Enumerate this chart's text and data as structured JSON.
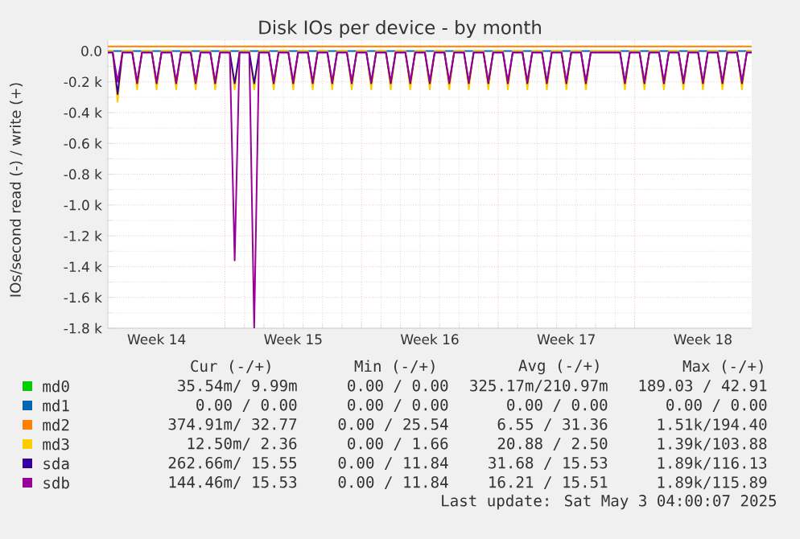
{
  "chart_data": {
    "type": "line",
    "title": "Disk IOs per device - by month",
    "ylabel": "IOs/second read (-) / write (+)",
    "categories": [
      null,
      null,
      null,
      null,
      null,
      null,
      null,
      null,
      null,
      null,
      "Week 14",
      null,
      null,
      null,
      null,
      null,
      null,
      null,
      null,
      null,
      null,
      null,
      null,
      null,
      null,
      null,
      null,
      null,
      null,
      null,
      null,
      null,
      null,
      null,
      null,
      null,
      null,
      null,
      "Week 15",
      null,
      null,
      null,
      null,
      null,
      null,
      null,
      null,
      null,
      null,
      null,
      null,
      null,
      null,
      null,
      null,
      null,
      null,
      null,
      null,
      null,
      null,
      null,
      null,
      null,
      null,
      null,
      "Week 16",
      null,
      null,
      null,
      null,
      null,
      null,
      null,
      null,
      null,
      null,
      null,
      null,
      null,
      null,
      null,
      null,
      null,
      null,
      null,
      null,
      null,
      null,
      null,
      null,
      null,
      null,
      null,
      "Week 17",
      null,
      null,
      null,
      null,
      null,
      null,
      null,
      null,
      null,
      null,
      null,
      null,
      null,
      null,
      null,
      null,
      null,
      null,
      null,
      null,
      null,
      null,
      null,
      null,
      null,
      null,
      null,
      "Week 18",
      null,
      null,
      null,
      null,
      null,
      null,
      null,
      null,
      null,
      null
    ],
    "series": [
      {
        "name": "md0",
        "color": "#00cc00",
        "values": [
          null,
          null,
          null,
          null,
          null,
          null,
          null,
          null,
          null,
          null,
          null,
          null,
          null,
          null,
          null,
          null,
          null,
          null,
          null,
          null,
          null,
          null,
          null,
          null,
          null,
          null,
          null,
          null,
          null,
          null,
          null,
          null,
          null,
          null,
          null,
          null,
          null,
          null,
          null,
          null,
          null,
          null,
          null,
          null,
          null,
          null,
          null,
          null,
          null,
          null,
          null,
          null,
          null,
          null,
          null,
          null,
          null,
          null,
          null,
          null,
          null,
          null,
          null,
          null,
          null,
          null,
          null,
          null,
          null,
          null,
          null,
          null,
          null,
          null,
          null,
          null,
          null,
          null,
          null,
          null,
          null,
          null,
          null,
          null,
          null,
          null,
          null,
          null,
          null,
          null,
          null,
          null,
          null,
          null,
          null,
          null,
          null,
          null,
          null,
          null,
          null,
          null,
          null,
          null,
          null,
          null,
          null,
          null,
          null,
          null,
          null,
          null,
          null,
          null,
          null,
          null,
          null,
          null,
          null,
          null,
          null,
          null,
          null,
          null,
          null,
          null,
          null,
          null,
          null,
          null,
          null,
          null,
          null
        ]
      },
      {
        "name": "md1",
        "color": "#0066b3",
        "values": [
          0,
          0,
          0,
          0,
          0,
          0,
          0,
          0,
          0,
          0,
          0,
          0,
          0,
          0,
          0,
          0,
          0,
          0,
          0,
          0,
          0,
          0,
          0,
          0,
          0,
          0,
          0,
          0,
          0,
          0,
          0,
          0,
          0,
          0,
          0,
          0,
          0,
          0,
          0,
          0,
          0,
          0,
          0,
          0,
          0,
          0,
          0,
          0,
          0,
          0,
          0,
          0,
          0,
          0,
          0,
          0,
          0,
          0,
          0,
          0,
          0,
          0,
          0,
          0,
          0,
          0,
          0,
          0,
          0,
          0,
          0,
          0,
          0,
          0,
          0,
          0,
          0,
          0,
          0,
          0,
          0,
          0,
          0,
          0,
          0,
          0,
          0,
          0,
          0,
          0,
          0,
          0,
          0,
          0,
          0,
          0,
          0,
          0,
          0,
          0,
          0,
          0,
          0,
          0,
          0,
          0,
          0,
          0,
          0,
          0,
          0,
          0,
          0,
          0,
          0,
          0,
          0,
          0,
          0,
          0,
          0,
          0,
          0,
          0,
          0,
          0,
          0,
          0,
          0,
          0,
          0,
          0,
          0
        ]
      },
      {
        "name": "md2",
        "color": "#ff8000",
        "values": [
          30,
          30,
          30,
          30,
          30,
          30,
          30,
          30,
          30,
          30,
          30,
          30,
          30,
          30,
          30,
          30,
          30,
          30,
          30,
          30,
          30,
          30,
          30,
          30,
          30,
          30,
          30,
          30,
          30,
          30,
          30,
          30,
          30,
          30,
          30,
          30,
          30,
          30,
          30,
          30,
          30,
          30,
          30,
          30,
          30,
          30,
          30,
          30,
          30,
          30,
          30,
          30,
          30,
          30,
          30,
          30,
          30,
          30,
          30,
          30,
          30,
          30,
          30,
          30,
          30,
          30,
          30,
          30,
          30,
          30,
          30,
          30,
          30,
          30,
          30,
          30,
          30,
          30,
          30,
          30,
          30,
          30,
          30,
          30,
          30,
          30,
          30,
          30,
          30,
          30,
          30,
          30,
          30,
          30,
          30,
          30,
          30,
          30,
          30,
          30,
          30,
          30,
          30,
          30,
          30,
          30,
          30,
          30,
          30,
          30,
          30,
          30,
          30,
          30,
          30,
          30,
          30,
          30,
          30,
          30,
          30,
          30,
          30,
          30,
          30,
          30,
          30,
          30,
          30,
          30,
          30,
          30,
          30
        ]
      },
      {
        "name": "md3",
        "color": "#ffcc00",
        "values": [
          0,
          0,
          -330,
          0,
          0,
          0,
          -250,
          0,
          0,
          0,
          -250,
          0,
          0,
          0,
          -250,
          0,
          0,
          0,
          -250,
          0,
          0,
          0,
          -250,
          0,
          0,
          0,
          -250,
          0,
          0,
          0,
          -250,
          0,
          0,
          0,
          -250,
          0,
          0,
          0,
          -250,
          0,
          0,
          0,
          -250,
          0,
          0,
          0,
          -250,
          0,
          0,
          0,
          -250,
          0,
          0,
          0,
          -250,
          0,
          0,
          0,
          -250,
          0,
          0,
          0,
          -250,
          0,
          0,
          0,
          -250,
          0,
          0,
          0,
          -250,
          0,
          0,
          0,
          -250,
          0,
          0,
          0,
          -250,
          0,
          0,
          0,
          -250,
          0,
          0,
          0,
          -250,
          0,
          0,
          0,
          -250,
          0,
          0,
          0,
          -250,
          0,
          0,
          0,
          -250,
          0,
          0,
          0,
          0,
          0,
          0,
          0,
          -250,
          0,
          0,
          0,
          -250,
          0,
          0,
          0,
          -250,
          0,
          0,
          0,
          -250,
          0,
          0,
          0,
          -250,
          0,
          0,
          0,
          -250,
          0,
          0,
          0,
          -250,
          0,
          0
        ]
      },
      {
        "name": "sda",
        "color": "#330099",
        "values": [
          -10,
          -10,
          -280,
          -10,
          -10,
          -10,
          -210,
          -10,
          -10,
          -10,
          -210,
          -10,
          -10,
          -10,
          -210,
          -10,
          -10,
          -10,
          -210,
          -10,
          -10,
          -10,
          -210,
          -10,
          -10,
          -10,
          -210,
          -10,
          -10,
          -10,
          -210,
          -10,
          -10,
          -10,
          -210,
          -10,
          -10,
          -10,
          -210,
          -10,
          -10,
          -10,
          -210,
          -10,
          -10,
          -10,
          -210,
          -10,
          -10,
          -10,
          -210,
          -10,
          -10,
          -10,
          -210,
          -10,
          -10,
          -10,
          -210,
          -10,
          -10,
          -10,
          -210,
          -10,
          -10,
          -10,
          -210,
          -10,
          -10,
          -10,
          -210,
          -10,
          -10,
          -10,
          -210,
          -10,
          -10,
          -10,
          -210,
          -10,
          -10,
          -10,
          -210,
          -10,
          -10,
          -10,
          -210,
          -10,
          -10,
          -10,
          -210,
          -10,
          -10,
          -10,
          -210,
          -10,
          -10,
          -10,
          -210,
          -10,
          -10,
          -10,
          -10,
          -10,
          -10,
          -10,
          -210,
          -10,
          -10,
          -10,
          -210,
          -10,
          -10,
          -10,
          -210,
          -10,
          -10,
          -10,
          -210,
          -10,
          -10,
          -10,
          -210,
          -10,
          -10,
          -10,
          -210,
          -10,
          -10,
          -10,
          -210,
          -10,
          -10
        ]
      },
      {
        "name": "sdb",
        "color": "#990099",
        "values": [
          -10,
          -10,
          -200,
          -10,
          -10,
          -10,
          -200,
          -10,
          -10,
          -10,
          -200,
          -10,
          -10,
          -10,
          -200,
          -10,
          -10,
          -10,
          -200,
          -10,
          -10,
          -10,
          -200,
          -10,
          -10,
          -10,
          -1360,
          -10,
          -10,
          -10,
          -1800,
          -10,
          -10,
          -10,
          -200,
          -10,
          -10,
          -10,
          -200,
          -10,
          -10,
          -10,
          -200,
          -10,
          -10,
          -10,
          -200,
          -10,
          -10,
          -10,
          -200,
          -10,
          -10,
          -10,
          -200,
          -10,
          -10,
          -10,
          -200,
          -10,
          -10,
          -10,
          -200,
          -10,
          -10,
          -10,
          -200,
          -10,
          -10,
          -10,
          -200,
          -10,
          -10,
          -10,
          -200,
          -10,
          -10,
          -10,
          -200,
          -10,
          -10,
          -10,
          -200,
          -10,
          -10,
          -10,
          -200,
          -10,
          -10,
          -10,
          -200,
          -10,
          -10,
          -10,
          -200,
          -10,
          -10,
          -10,
          -200,
          -10,
          -10,
          -10,
          -10,
          -10,
          -10,
          -10,
          -200,
          -10,
          -10,
          -10,
          -200,
          -10,
          -10,
          -10,
          -200,
          -10,
          -10,
          -10,
          -200,
          -10,
          -10,
          -10,
          -200,
          -10,
          -10,
          -10,
          -200,
          -10,
          -10,
          -10,
          -200,
          -10,
          -10
        ]
      }
    ],
    "ylim": [
      -1800,
      70
    ],
    "yticks": [
      {
        "value": -1800,
        "label": "-1.8 k"
      },
      {
        "value": -1600,
        "label": "-1.6 k"
      },
      {
        "value": -1400,
        "label": "-1.4 k"
      },
      {
        "value": -1200,
        "label": "-1.2 k"
      },
      {
        "value": -1000,
        "label": "-1.0 k"
      },
      {
        "value": -800,
        "label": "-0.8 k"
      },
      {
        "value": -600,
        "label": "-0.6 k"
      },
      {
        "value": -400,
        "label": "-0.4 k"
      },
      {
        "value": -200,
        "label": "-0.2 k"
      },
      {
        "value": 0,
        "label": "0.0"
      }
    ],
    "grid": true,
    "legend": "bottom",
    "line_style": "solid",
    "marker": "none",
    "annotations": [
      "Cur (-/+)",
      "Min (-/+)",
      "Avg (-/+)",
      "Max (-/+)",
      "35.54m/ 9.99m",
      "0.00 /  0.00",
      "325.17m/210.97m",
      "189.03 / 42.91",
      "0.00 /  0.00",
      "0.00 /  0.00",
      "0.00 /  0.00",
      "0.00 /  0.00",
      "374.91m/ 32.77",
      "0.00 / 25.54",
      "6.55 / 31.36",
      "1.51k/194.40",
      "12.50m/  2.36",
      "0.00 /  1.66",
      "20.88 /  2.50",
      "1.39k/103.88",
      "262.66m/ 15.55",
      "0.00 / 11.84",
      "31.68 / 15.53",
      "1.89k/116.13",
      "144.46m/ 15.53",
      "0.00 / 11.84",
      "16.21 / 15.51",
      "1.89k/115.89",
      "Last update: Sat May  3 04:00:07 2025"
    ]
  }
}
